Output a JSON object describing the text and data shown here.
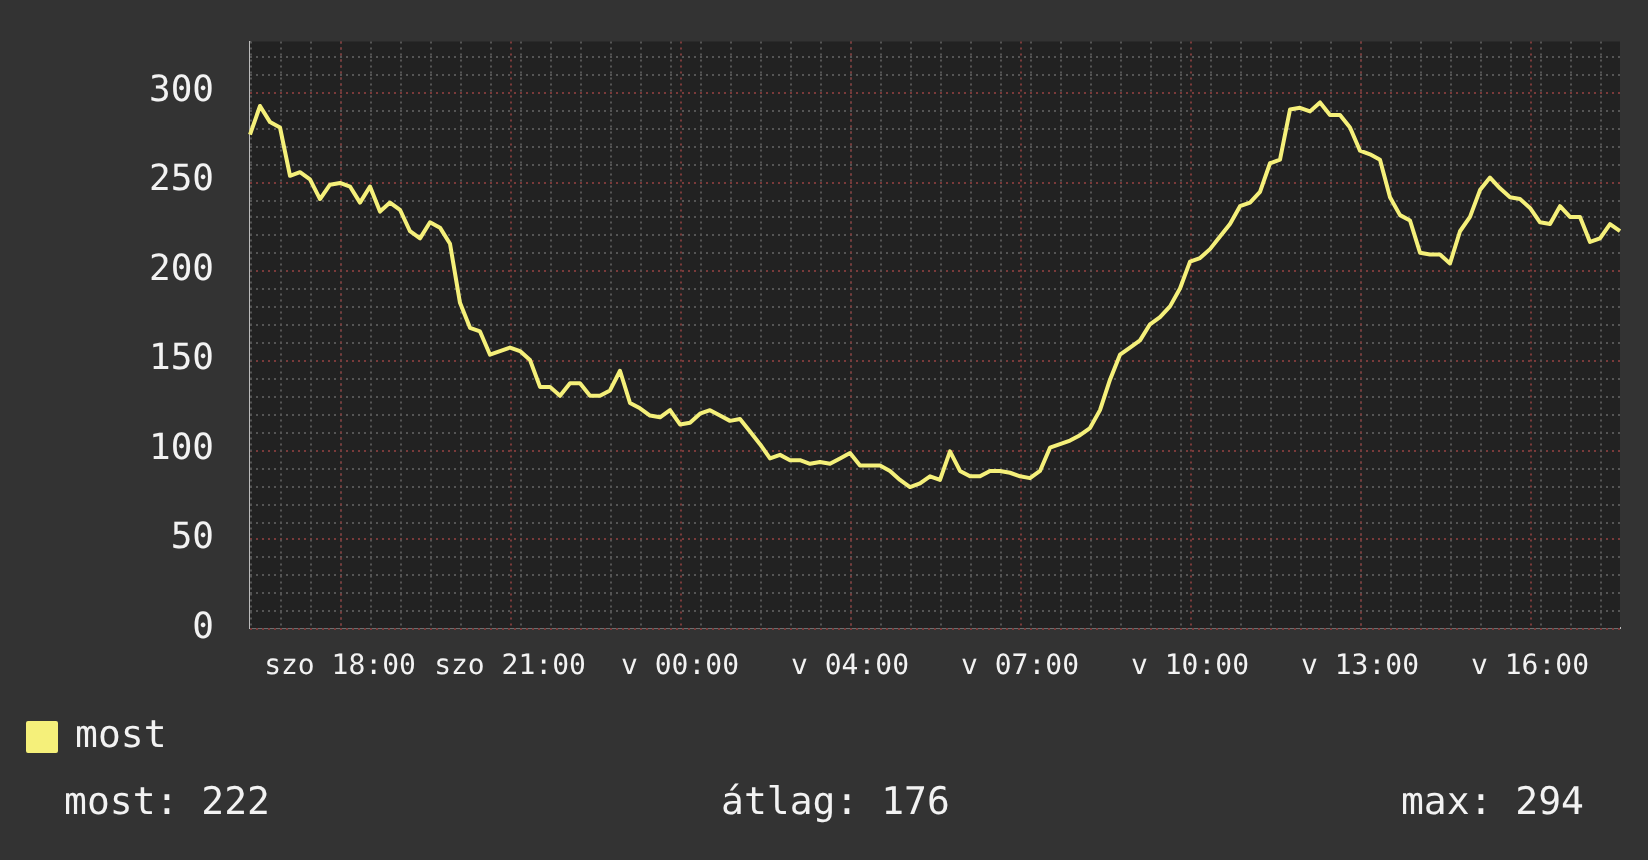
{
  "chart_data": {
    "type": "line",
    "categories": [
      null,
      null,
      null,
      null,
      null,
      null,
      null,
      null,
      null,
      "szo 18:00",
      null,
      null,
      null,
      null,
      null,
      null,
      null,
      null,
      null,
      null,
      null,
      null,
      null,
      null,
      null,
      null,
      "szo 21:00",
      null,
      null,
      null,
      null,
      null,
      null,
      null,
      null,
      null,
      null,
      null,
      null,
      null,
      null,
      null,
      null,
      "v 00:00",
      null,
      null,
      null,
      null,
      null,
      null,
      null,
      null,
      null,
      null,
      null,
      null,
      null,
      null,
      null,
      null,
      "v 04:00",
      null,
      null,
      null,
      null,
      null,
      null,
      null,
      null,
      null,
      null,
      null,
      null,
      null,
      null,
      null,
      null,
      "v 07:00",
      null,
      null,
      null,
      null,
      null,
      null,
      null,
      null,
      null,
      null,
      null,
      null,
      null,
      null,
      null,
      null,
      "v 10:00",
      null,
      null,
      null,
      null,
      null,
      null,
      null,
      null,
      null,
      null,
      null,
      null,
      null,
      null,
      null,
      null,
      "v 13:00",
      null,
      null,
      null,
      null,
      null,
      null,
      null,
      null,
      null,
      null,
      null,
      null,
      null,
      null,
      null,
      null,
      "v 16:00",
      null,
      null,
      null,
      null,
      null,
      null,
      null,
      null,
      null
    ],
    "series": [
      {
        "name": "most",
        "color": "#f5f07a",
        "values": [
          276,
          292,
          283,
          280,
          253,
          255,
          251,
          240,
          248,
          249,
          247,
          238,
          247,
          233,
          238,
          234,
          222,
          218,
          227,
          224,
          215,
          182,
          168,
          166,
          153,
          155,
          157,
          155,
          150,
          135,
          135,
          130,
          137,
          137,
          130,
          130,
          133,
          144,
          126,
          123,
          119,
          118,
          122,
          114,
          115,
          120,
          122,
          119,
          116,
          117,
          110,
          103,
          95,
          97,
          94,
          94,
          92,
          93,
          92,
          95,
          98,
          91,
          91,
          91,
          88,
          83,
          79,
          81,
          85,
          83,
          99,
          88,
          85,
          85,
          88,
          88,
          87,
          85,
          84,
          88,
          101,
          103,
          105,
          108,
          112,
          122,
          139,
          153,
          157,
          161,
          170,
          174,
          180,
          190,
          205,
          207,
          212,
          219,
          226,
          236,
          238,
          244,
          260,
          262,
          290,
          291,
          289,
          294,
          287,
          287,
          280,
          267,
          265,
          262,
          241,
          231,
          228,
          210,
          209,
          209,
          204,
          222,
          230,
          245,
          252,
          246,
          241,
          240,
          235,
          227,
          226,
          236,
          230,
          230,
          216,
          218,
          226,
          222
        ]
      }
    ],
    "ylim": [
      0,
      328
    ],
    "yticks": [
      0,
      50,
      100,
      150,
      200,
      250,
      300
    ],
    "grid": true,
    "legend": "bottom left",
    "marker": "none",
    "line_style": "solid",
    "annotations": [
      "most: 222",
      "átlag: 176",
      "max: 294"
    ]
  }
}
